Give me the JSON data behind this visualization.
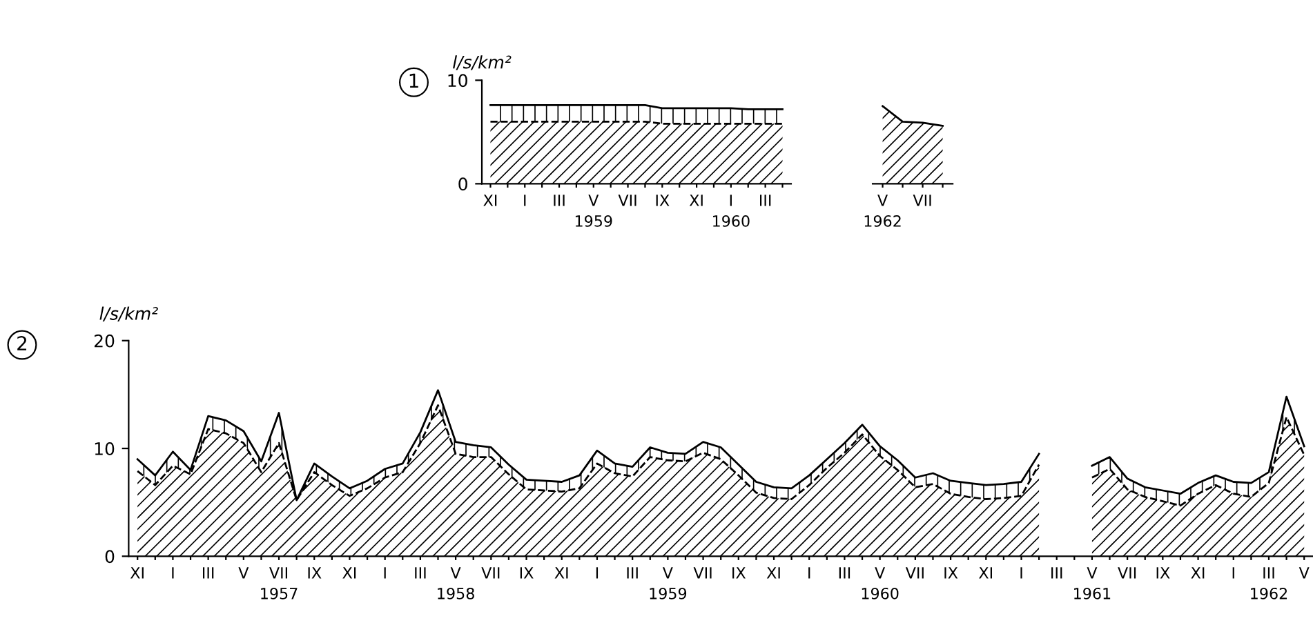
{
  "chart_data": [
    {
      "type": "area",
      "title": "1",
      "ylabel": "l/s/km²",
      "ylim": [
        0,
        10
      ],
      "yticks": [
        0,
        10
      ],
      "categories": [
        "XI",
        null,
        "I",
        null,
        "III",
        null,
        "V\n1959",
        null,
        "VII",
        null,
        "IX",
        null,
        "XI",
        null,
        "I\n1960",
        null,
        "III",
        null
      ],
      "series": [
        {
          "color": "#000000",
          "line_style": "solid",
          "values": [
            7.6,
            7.6,
            7.6,
            7.6,
            7.6,
            7.6,
            7.6,
            7.6,
            7.6,
            7.6,
            7.3,
            7.3,
            7.3,
            7.3,
            7.3,
            7.2,
            7.2,
            7.2
          ]
        },
        {
          "color": "#000000",
          "line_style": "dashed",
          "values": [
            6.0,
            6.0,
            6.0,
            6.0,
            6.0,
            6.0,
            6.0,
            6.0,
            6.0,
            6.0,
            5.8,
            5.8,
            5.8,
            5.8,
            5.8,
            5.8,
            5.8,
            5.8
          ]
        }
      ]
    },
    {
      "type": "area",
      "tick_labels": "x",
      "ylim": [
        0,
        10
      ],
      "categories": [
        "V\n1962",
        null,
        "VII",
        null
      ],
      "series": [
        {
          "color": "#000000",
          "line_style": "solid",
          "values": [
            7.5,
            6.0,
            5.9,
            5.6
          ]
        }
      ]
    },
    {
      "type": "area",
      "title": "2",
      "ylabel": "l/s/km²",
      "ylim": [
        0,
        20
      ],
      "yticks": [
        0,
        10,
        20
      ],
      "categories": [
        "XI",
        null,
        "I",
        null,
        "III",
        null,
        "V",
        null,
        "VII\n1957",
        null,
        "IX",
        null,
        "XI",
        null,
        "I",
        null,
        "III",
        null,
        "V\n1958",
        null,
        "VII",
        null,
        "IX",
        null,
        "XI",
        null,
        "I",
        null,
        "III",
        null,
        "V\n1959",
        null,
        "VII",
        null,
        "IX",
        null,
        "XI",
        null,
        "I",
        null,
        "III",
        null,
        "V\n1960",
        null,
        "VII",
        null,
        "IX",
        null,
        "XI",
        null,
        "I",
        null,
        "III",
        null,
        "V\n1961",
        null,
        "VII",
        null,
        "IX",
        null,
        "XI",
        null,
        "I",
        null,
        "III\n1962",
        null,
        "V"
      ],
      "series": [
        {
          "color": "#000000",
          "line_style": "solid",
          "values": [
            9.0,
            7.5,
            9.7,
            8.0,
            13.0,
            12.6,
            11.6,
            8.8,
            13.3,
            5.2,
            8.6,
            7.4,
            6.3,
            7.0,
            8.1,
            8.6,
            11.5,
            15.4,
            10.6,
            10.3,
            10.1,
            8.5,
            7.1,
            7.0,
            6.9,
            7.5,
            9.8,
            8.6,
            8.3,
            10.1,
            9.6,
            9.5,
            10.6,
            10.1,
            8.5,
            6.9,
            6.4,
            6.3,
            7.5,
            9.0,
            10.5,
            12.2,
            10.2,
            8.9,
            7.3,
            7.7,
            7.0,
            6.8,
            6.6,
            6.7,
            6.9,
            9.5,
            null,
            null,
            8.4,
            9.2,
            7.2,
            6.4,
            6.1,
            5.8,
            6.8,
            7.5,
            6.9,
            6.8,
            7.8,
            14.8,
            10.2
          ]
        },
        {
          "color": "#000000",
          "line_style": "dashed",
          "values": [
            7.9,
            6.6,
            8.4,
            7.6,
            11.8,
            11.4,
            10.5,
            7.8,
            10.5,
            5.2,
            7.8,
            6.6,
            5.6,
            6.3,
            7.3,
            7.8,
            10.5,
            14.0,
            9.5,
            9.2,
            9.2,
            7.6,
            6.2,
            6.1,
            6.0,
            6.3,
            8.6,
            7.7,
            7.4,
            9.2,
            8.9,
            8.8,
            9.6,
            9.0,
            7.5,
            5.9,
            5.4,
            5.3,
            6.6,
            8.2,
            9.6,
            11.3,
            9.3,
            8.0,
            6.4,
            6.7,
            5.8,
            5.5,
            5.3,
            5.4,
            5.6,
            8.5,
            null,
            null,
            7.3,
            8.1,
            6.2,
            5.5,
            5.1,
            4.7,
            5.8,
            6.6,
            5.8,
            5.5,
            6.8,
            12.9,
            9.4
          ]
        }
      ]
    }
  ]
}
